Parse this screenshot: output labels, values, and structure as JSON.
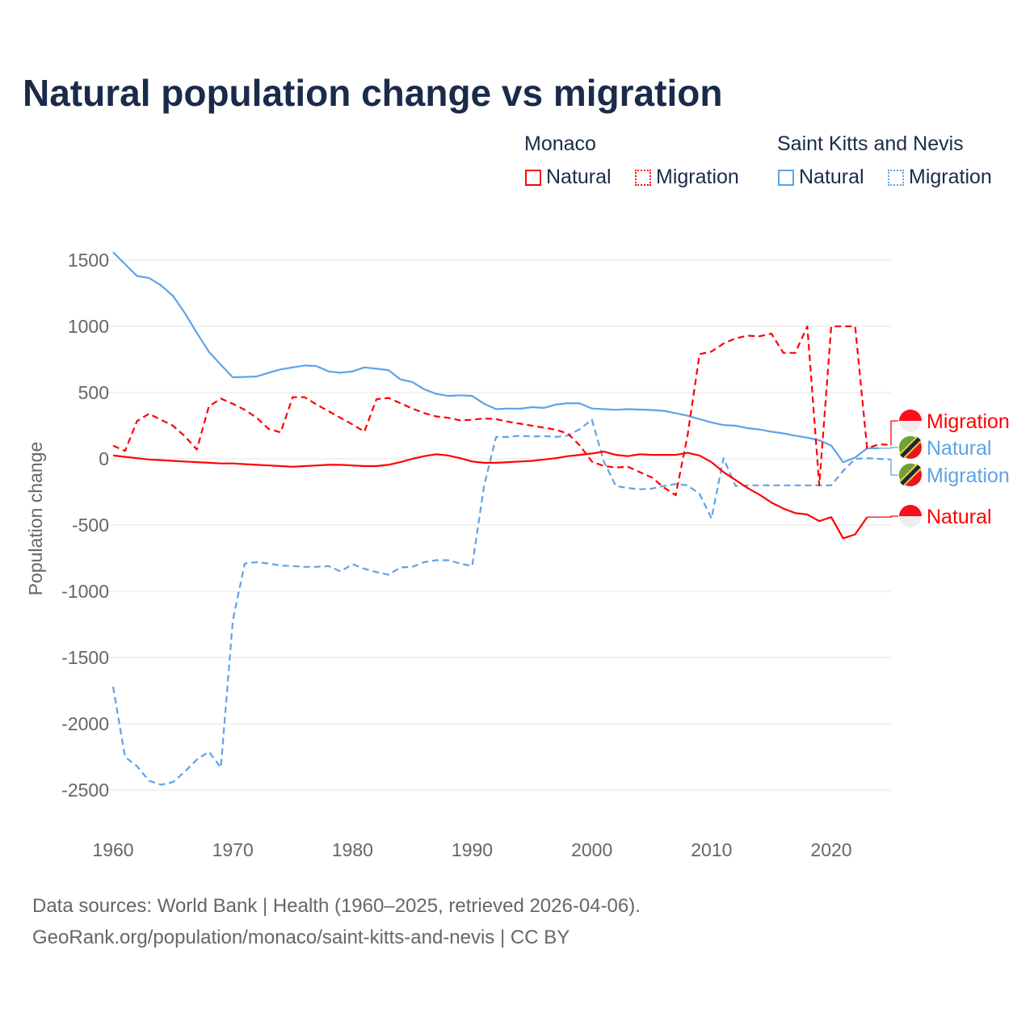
{
  "title": "Natural population change vs migration",
  "legend": {
    "groups": [
      {
        "name": "Monaco",
        "color": "#ff0000",
        "items": [
          "Natural",
          "Migration"
        ]
      },
      {
        "name": "Saint Kitts and Nevis",
        "color": "#5ea3e8",
        "items": [
          "Natural",
          "Migration"
        ]
      }
    ]
  },
  "footer": {
    "line1": "Data sources: World Bank | Health (1960–2025, retrieved 2026-04-06).",
    "line2": "GeoRank.org/population/monaco/saint-kitts-and-nevis | CC BY"
  },
  "chart_data": {
    "type": "line",
    "title": "Natural population change vs migration",
    "xlabel": "",
    "ylabel": "Population change",
    "xlim": [
      1960,
      2025
    ],
    "ylim": [
      -2700,
      1600
    ],
    "xticks": [
      1960,
      1970,
      1980,
      1990,
      2000,
      2010,
      2020
    ],
    "yticks": [
      1500,
      1000,
      500,
      0,
      -500,
      -1000,
      -1500,
      -2000,
      -2500
    ],
    "grid": true,
    "x_start": 1960,
    "series": [
      {
        "name": "Saint Kitts and Nevis Natural",
        "country": "Saint Kitts and Nevis",
        "kind": "Natural",
        "color": "#5ea3e8",
        "dash": false,
        "end_label": "Natural",
        "values": [
          1560,
          1470,
          1380,
          1365,
          1310,
          1230,
          1100,
          950,
          810,
          710,
          615,
          618,
          622,
          650,
          675,
          690,
          705,
          700,
          660,
          650,
          660,
          690,
          680,
          670,
          600,
          580,
          525,
          490,
          475,
          480,
          475,
          415,
          375,
          380,
          378,
          390,
          385,
          410,
          420,
          418,
          380,
          375,
          370,
          375,
          372,
          368,
          362,
          345,
          325,
          300,
          275,
          255,
          250,
          232,
          222,
          205,
          192,
          175,
          160,
          140,
          100,
          -25,
          10,
          80,
          80
        ]
      },
      {
        "name": "Saint Kitts and Nevis Migration",
        "country": "Saint Kitts and Nevis",
        "kind": "Migration",
        "color": "#5ea3e8",
        "dash": true,
        "end_label": "Migration",
        "values": [
          -1720,
          -2250,
          -2320,
          -2430,
          -2460,
          -2440,
          -2360,
          -2270,
          -2210,
          -2330,
          -1220,
          -790,
          -780,
          -790,
          -805,
          -810,
          -815,
          -815,
          -810,
          -850,
          -795,
          -830,
          -855,
          -875,
          -820,
          -815,
          -780,
          -765,
          -765,
          -790,
          -810,
          -200,
          165,
          165,
          175,
          168,
          172,
          165,
          175,
          225,
          295,
          -20,
          -205,
          -220,
          -230,
          -225,
          -205,
          -190,
          -200,
          -265,
          -450,
          5,
          -205,
          -200,
          -200,
          -200,
          -200,
          -200,
          -200,
          -200,
          -200,
          -90,
          0,
          5,
          0,
          -5
        ]
      },
      {
        "name": "Monaco Migration",
        "country": "Monaco",
        "kind": "Migration",
        "color": "#ff0000",
        "dash": true,
        "end_label": "Migration",
        "values": [
          100,
          60,
          285,
          340,
          295,
          250,
          170,
          70,
          395,
          455,
          415,
          370,
          310,
          225,
          200,
          465,
          465,
          410,
          360,
          310,
          260,
          205,
          450,
          460,
          420,
          380,
          345,
          320,
          310,
          290,
          295,
          305,
          300,
          280,
          265,
          250,
          235,
          220,
          190,
          100,
          -20,
          -55,
          -65,
          -60,
          -100,
          -140,
          -215,
          -275,
          180,
          790,
          810,
          870,
          910,
          930,
          925,
          945,
          800,
          800,
          1000,
          -200,
          1000,
          1000,
          1000,
          80,
          110,
          105
        ]
      },
      {
        "name": "Monaco Natural",
        "country": "Monaco",
        "kind": "Natural",
        "color": "#ff0000",
        "dash": false,
        "end_label": "Natural",
        "values": [
          25,
          15,
          5,
          -5,
          -10,
          -15,
          -20,
          -25,
          -30,
          -35,
          -35,
          -40,
          -45,
          -50,
          -55,
          -60,
          -55,
          -50,
          -45,
          -45,
          -50,
          -55,
          -55,
          -45,
          -25,
          0,
          20,
          35,
          25,
          5,
          -20,
          -30,
          -30,
          -25,
          -20,
          -15,
          -5,
          5,
          20,
          30,
          40,
          55,
          30,
          20,
          35,
          30,
          30,
          30,
          45,
          25,
          -25,
          -100,
          -160,
          -220,
          -270,
          -330,
          -375,
          -410,
          -420,
          -470,
          -440,
          -600,
          -570,
          -440
        ]
      }
    ]
  }
}
